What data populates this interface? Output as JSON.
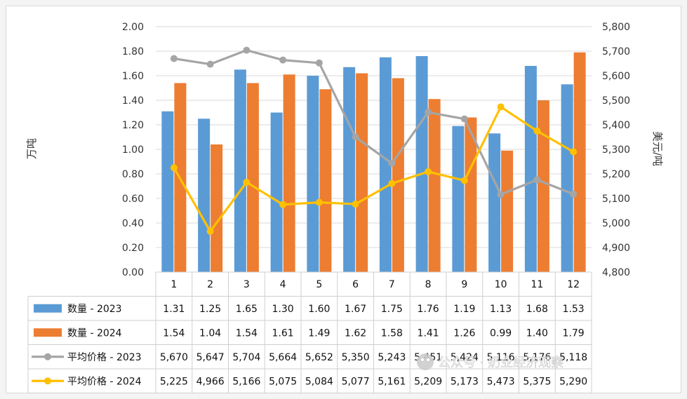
{
  "chart_data": {
    "type": "bar",
    "categories": [
      "1",
      "2",
      "3",
      "4",
      "5",
      "6",
      "7",
      "8",
      "9",
      "10",
      "11",
      "12"
    ],
    "left_axis": {
      "label": "万吨",
      "ylim": [
        0,
        2.0
      ],
      "ticks": [
        "0.00",
        "0.20",
        "0.40",
        "0.60",
        "0.80",
        "1.00",
        "1.20",
        "1.40",
        "1.60",
        "1.80",
        "2.00"
      ]
    },
    "right_axis": {
      "label": "美元/吨",
      "ylim": [
        4800,
        5800
      ],
      "ticks": [
        "4,800",
        "4,900",
        "5,000",
        "5,100",
        "5,200",
        "5,300",
        "5,400",
        "5,500",
        "5,600",
        "5,700",
        "5,800"
      ]
    },
    "grid": true,
    "legend": "data-table",
    "series": [
      {
        "name": "数量 - 2023",
        "type": "bar",
        "axis": "left",
        "color": "#5b9bd5",
        "values": [
          1.31,
          1.25,
          1.65,
          1.3,
          1.6,
          1.67,
          1.75,
          1.76,
          1.19,
          1.13,
          1.68,
          1.53
        ],
        "labels": [
          "1.31",
          "1.25",
          "1.65",
          "1.30",
          "1.60",
          "1.67",
          "1.75",
          "1.76",
          "1.19",
          "1.13",
          "1.68",
          "1.53"
        ]
      },
      {
        "name": "数量 - 2024",
        "type": "bar",
        "axis": "left",
        "color": "#ed7d31",
        "values": [
          1.54,
          1.04,
          1.54,
          1.61,
          1.49,
          1.62,
          1.58,
          1.41,
          1.26,
          0.99,
          1.4,
          1.79
        ],
        "labels": [
          "1.54",
          "1.04",
          "1.54",
          "1.61",
          "1.49",
          "1.62",
          "1.58",
          "1.41",
          "1.26",
          "0.99",
          "1.40",
          "1.79"
        ]
      },
      {
        "name": "平均价格 - 2023",
        "type": "line",
        "axis": "right",
        "color": "#a5a5a5",
        "values": [
          5670,
          5647,
          5704,
          5664,
          5652,
          5350,
          5243,
          5451,
          5424,
          5116,
          5176,
          5118
        ],
        "labels": [
          "5,670",
          "5,647",
          "5,704",
          "5,664",
          "5,652",
          "5,350",
          "5,243",
          "5,451",
          "5,424",
          "5,116",
          "5,176",
          "5,118"
        ]
      },
      {
        "name": "平均价格 - 2024",
        "type": "line",
        "axis": "right",
        "color": "#ffc000",
        "values": [
          5225,
          4966,
          5166,
          5075,
          5084,
          5077,
          5161,
          5209,
          5173,
          5473,
          5375,
          5290
        ],
        "labels": [
          "5,225",
          "4,966",
          "5,166",
          "5,075",
          "5,084",
          "5,077",
          "5,161",
          "5,209",
          "5,173",
          "5,473",
          "5,375",
          "5,290"
        ]
      }
    ]
  },
  "watermark": "公众号 · 奶业经济观察"
}
